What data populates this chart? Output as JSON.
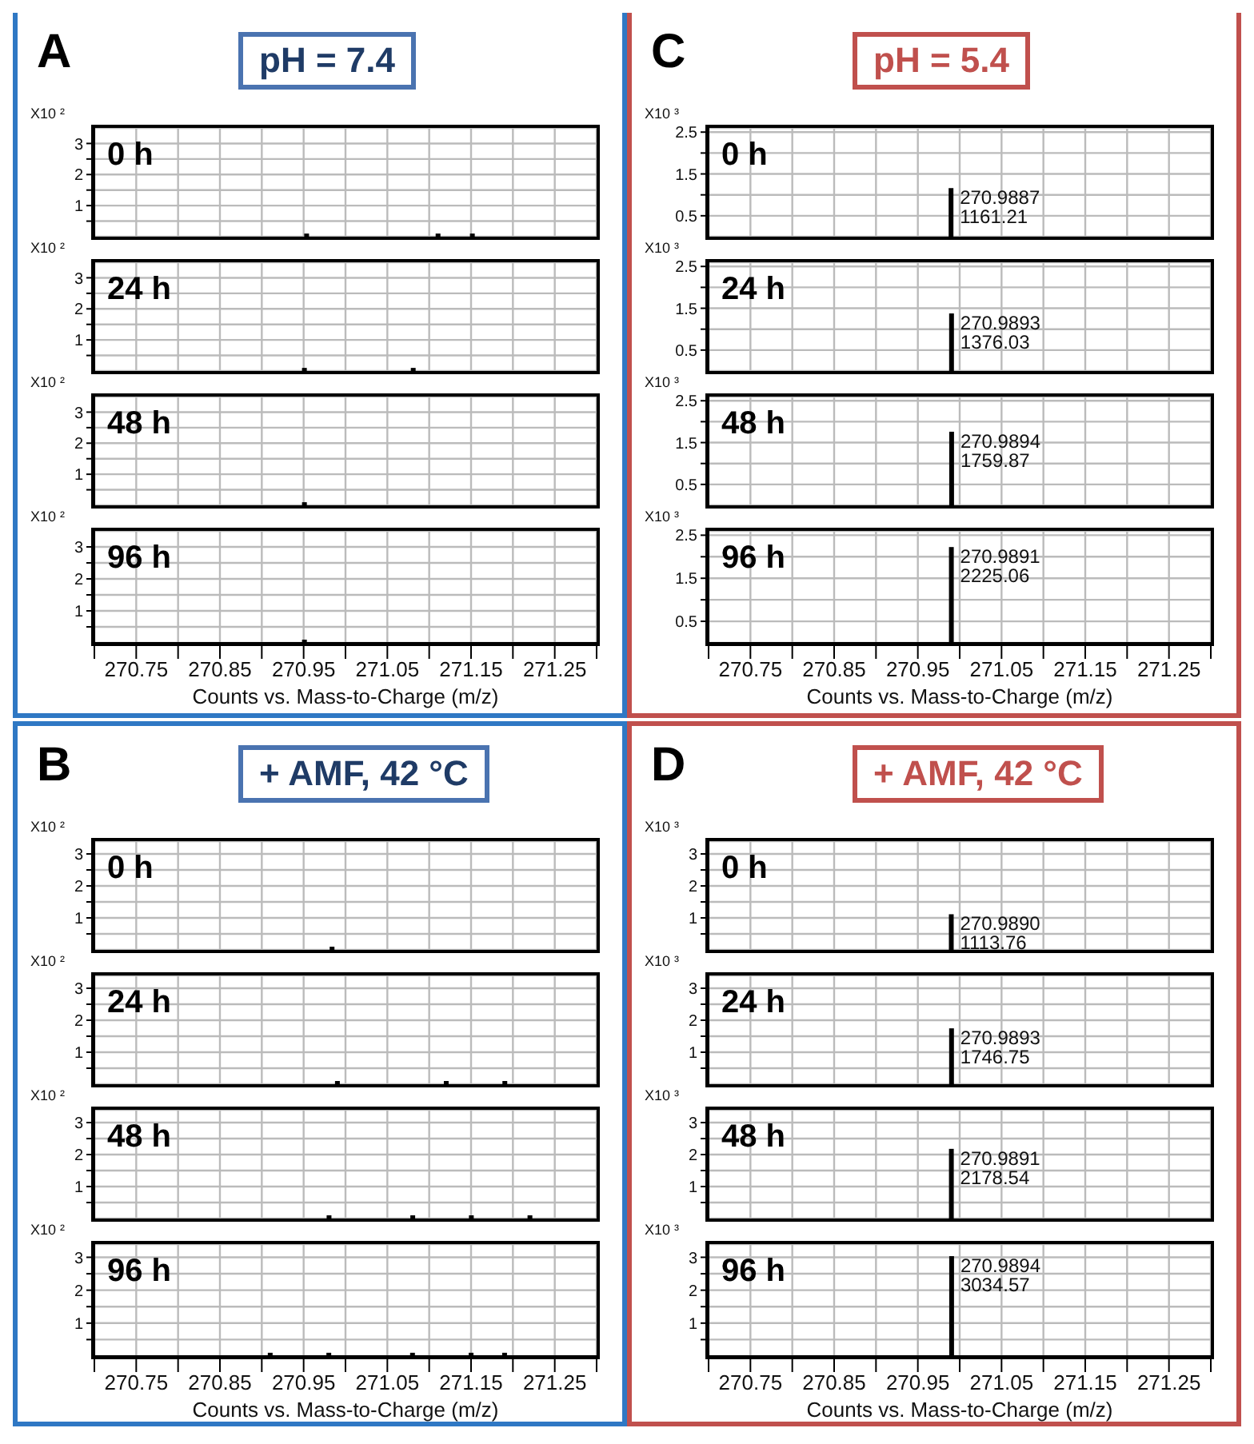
{
  "chart_data": [
    {
      "type": "bar",
      "title": "pH = 7.4",
      "annotations": [
        "A",
        "0 h"
      ],
      "ylabel": "X10 ²",
      "x": [
        270.954,
        271.111,
        271.152
      ],
      "values": [
        0.1,
        0.1,
        0.1
      ],
      "color": "#000000",
      "xlim": [
        270.7,
        271.3
      ],
      "xticks": [
        {
          "value": 270.7,
          "label": null
        },
        270.75,
        {
          "value": 270.8,
          "label": null
        },
        270.85,
        {
          "value": 270.9,
          "label": null
        },
        270.95,
        {
          "value": 271.0,
          "label": null
        },
        271.05,
        {
          "value": 271.1,
          "label": null
        },
        271.15,
        {
          "value": 271.2,
          "label": null
        },
        271.25,
        {
          "value": 271.3,
          "label": null
        }
      ],
      "ylim": [
        0,
        3.5
      ],
      "yticks": [
        {
          "value": 0.5,
          "label": null
        },
        1,
        {
          "value": 1.5,
          "label": null
        },
        2,
        {
          "value": 2.5,
          "label": null
        },
        3
      ],
      "grid": true,
      "tick_labels": "y"
    },
    {
      "type": "bar",
      "annotations": [
        "24 h"
      ],
      "ylabel": "X10 ²",
      "x": [
        270.95,
        271.08
      ],
      "values": [
        0.1,
        0.1
      ],
      "color": "#000000",
      "xlim": [
        270.7,
        271.3
      ],
      "xticks": [
        {
          "value": 270.7,
          "label": null
        },
        270.75,
        {
          "value": 270.8,
          "label": null
        },
        270.85,
        {
          "value": 270.9,
          "label": null
        },
        270.95,
        {
          "value": 271.0,
          "label": null
        },
        271.05,
        {
          "value": 271.1,
          "label": null
        },
        271.15,
        {
          "value": 271.2,
          "label": null
        },
        271.25,
        {
          "value": 271.3,
          "label": null
        }
      ],
      "ylim": [
        0,
        3.5
      ],
      "yticks": [
        {
          "value": 0.5,
          "label": null
        },
        1,
        {
          "value": 1.5,
          "label": null
        },
        2,
        {
          "value": 2.5,
          "label": null
        },
        3
      ],
      "grid": true,
      "tick_labels": "y"
    },
    {
      "type": "bar",
      "annotations": [
        "48 h"
      ],
      "ylabel": "X10 ²",
      "x": [
        270.95
      ],
      "values": [
        0.1
      ],
      "color": "#000000",
      "xlim": [
        270.7,
        271.3
      ],
      "xticks": [
        {
          "value": 270.7,
          "label": null
        },
        270.75,
        {
          "value": 270.8,
          "label": null
        },
        270.85,
        {
          "value": 270.9,
          "label": null
        },
        270.95,
        {
          "value": 271.0,
          "label": null
        },
        271.05,
        {
          "value": 271.1,
          "label": null
        },
        271.15,
        {
          "value": 271.2,
          "label": null
        },
        271.25,
        {
          "value": 271.3,
          "label": null
        }
      ],
      "ylim": [
        0,
        3.5
      ],
      "yticks": [
        {
          "value": 0.5,
          "label": null
        },
        1,
        {
          "value": 1.5,
          "label": null
        },
        2,
        {
          "value": 2.5,
          "label": null
        },
        3
      ],
      "grid": true,
      "tick_labels": "y"
    },
    {
      "type": "bar",
      "annotations": [
        "96 h"
      ],
      "ylabel": "X10 ²",
      "xlabel": "Counts vs. Mass-to-Charge (m/z)",
      "x": [
        270.95
      ],
      "values": [
        0.1
      ],
      "color": "#000000",
      "xlim": [
        270.7,
        271.3
      ],
      "xticks": [
        {
          "value": 270.7,
          "label": null
        },
        270.75,
        {
          "value": 270.8,
          "label": null
        },
        270.85,
        {
          "value": 270.9,
          "label": null
        },
        270.95,
        {
          "value": 271.0,
          "label": null
        },
        271.05,
        {
          "value": 271.1,
          "label": null
        },
        271.15,
        {
          "value": 271.2,
          "label": null
        },
        271.25,
        {
          "value": 271.3,
          "label": null
        }
      ],
      "ylim": [
        0,
        3.5
      ],
      "yticks": [
        {
          "value": 0.5,
          "label": null
        },
        1,
        {
          "value": 1.5,
          "label": null
        },
        2,
        {
          "value": 2.5,
          "label": null
        },
        3
      ],
      "grid": true
    },
    {
      "type": "bar",
      "title": "pH = 5.4",
      "annotations": [
        "C",
        "0 h",
        {
          "text": "270.9887",
          "x": 270.9887,
          "y": 1.16121
        },
        {
          "text": "1161.21",
          "x": 270.9887,
          "y": 1.16121
        }
      ],
      "ylabel": "X10 ³",
      "x": [
        270.9887
      ],
      "values": [
        1.16121
      ],
      "color": "#000000",
      "xlim": [
        270.7,
        271.3
      ],
      "xticks": [
        {
          "value": 270.7,
          "label": null
        },
        270.75,
        {
          "value": 270.8,
          "label": null
        },
        270.85,
        {
          "value": 270.9,
          "label": null
        },
        270.95,
        {
          "value": 271.0,
          "label": null
        },
        271.05,
        {
          "value": 271.1,
          "label": null
        },
        271.15,
        {
          "value": 271.2,
          "label": null
        },
        271.25,
        {
          "value": 271.3,
          "label": null
        }
      ],
      "ylim": [
        0,
        2.6
      ],
      "yticks": [
        0.5,
        {
          "value": 1,
          "label": null
        },
        1.5,
        {
          "value": 2,
          "label": null
        },
        2.5
      ],
      "grid": true,
      "tick_labels": "y"
    },
    {
      "type": "bar",
      "annotations": [
        "24 h",
        {
          "text": "270.9893",
          "x": 270.9893,
          "y": 1.37603
        },
        {
          "text": "1376.03",
          "x": 270.9893,
          "y": 1.37603
        }
      ],
      "ylabel": "X10 ³",
      "x": [
        270.9893
      ],
      "values": [
        1.37603
      ],
      "color": "#000000",
      "xlim": [
        270.7,
        271.3
      ],
      "xticks": [
        {
          "value": 270.7,
          "label": null
        },
        270.75,
        {
          "value": 270.8,
          "label": null
        },
        270.85,
        {
          "value": 270.9,
          "label": null
        },
        270.95,
        {
          "value": 271.0,
          "label": null
        },
        271.05,
        {
          "value": 271.1,
          "label": null
        },
        271.15,
        {
          "value": 271.2,
          "label": null
        },
        271.25,
        {
          "value": 271.3,
          "label": null
        }
      ],
      "ylim": [
        0,
        2.6
      ],
      "yticks": [
        0.5,
        {
          "value": 1,
          "label": null
        },
        1.5,
        {
          "value": 2,
          "label": null
        },
        2.5
      ],
      "grid": true,
      "tick_labels": "y"
    },
    {
      "type": "bar",
      "annotations": [
        "48 h",
        {
          "text": "270.9894",
          "x": 270.9894,
          "y": 1.75987
        },
        {
          "text": "1759.87",
          "x": 270.9894,
          "y": 1.75987
        }
      ],
      "ylabel": "X10 ³",
      "x": [
        270.9894
      ],
      "values": [
        1.75987
      ],
      "color": "#000000",
      "xlim": [
        270.7,
        271.3
      ],
      "xticks": [
        {
          "value": 270.7,
          "label": null
        },
        270.75,
        {
          "value": 270.8,
          "label": null
        },
        270.85,
        {
          "value": 270.9,
          "label": null
        },
        270.95,
        {
          "value": 271.0,
          "label": null
        },
        271.05,
        {
          "value": 271.1,
          "label": null
        },
        271.15,
        {
          "value": 271.2,
          "label": null
        },
        271.25,
        {
          "value": 271.3,
          "label": null
        }
      ],
      "ylim": [
        0,
        2.6
      ],
      "yticks": [
        0.5,
        {
          "value": 1,
          "label": null
        },
        1.5,
        {
          "value": 2,
          "label": null
        },
        2.5
      ],
      "grid": true,
      "tick_labels": "y"
    },
    {
      "type": "bar",
      "annotations": [
        "96 h",
        {
          "text": "270.9891",
          "x": 270.9891,
          "y": 2.22506
        },
        {
          "text": "2225.06",
          "x": 270.9891,
          "y": 2.22506
        }
      ],
      "ylabel": "X10 ³",
      "xlabel": "Counts vs. Mass-to-Charge (m/z)",
      "x": [
        270.9891
      ],
      "values": [
        2.22506
      ],
      "color": "#000000",
      "xlim": [
        270.7,
        271.3
      ],
      "xticks": [
        {
          "value": 270.7,
          "label": null
        },
        270.75,
        {
          "value": 270.8,
          "label": null
        },
        270.85,
        {
          "value": 270.9,
          "label": null
        },
        270.95,
        {
          "value": 271.0,
          "label": null
        },
        271.05,
        {
          "value": 271.1,
          "label": null
        },
        271.15,
        {
          "value": 271.2,
          "label": null
        },
        271.25,
        {
          "value": 271.3,
          "label": null
        }
      ],
      "ylim": [
        0,
        2.6
      ],
      "yticks": [
        0.5,
        {
          "value": 1,
          "label": null
        },
        1.5,
        {
          "value": 2,
          "label": null
        },
        2.5
      ],
      "grid": true
    },
    {
      "type": "bar",
      "title": "+ AMF, 42 °C",
      "annotations": [
        "B",
        "0 h"
      ],
      "ylabel": "X10 ²",
      "x": [
        270.983
      ],
      "values": [
        0.1
      ],
      "color": "#000000",
      "xlim": [
        270.7,
        271.3
      ],
      "xticks": [
        {
          "value": 270.7,
          "label": null
        },
        270.75,
        {
          "value": 270.8,
          "label": null
        },
        270.85,
        {
          "value": 270.9,
          "label": null
        },
        270.95,
        {
          "value": 271.0,
          "label": null
        },
        271.05,
        {
          "value": 271.1,
          "label": null
        },
        271.15,
        {
          "value": 271.2,
          "label": null
        },
        271.25,
        {
          "value": 271.3,
          "label": null
        }
      ],
      "ylim": [
        0,
        3.4
      ],
      "yticks": [
        {
          "value": 0.5,
          "label": null
        },
        1,
        {
          "value": 1.5,
          "label": null
        },
        2,
        {
          "value": 2.5,
          "label": null
        },
        3
      ],
      "grid": true,
      "tick_labels": "y"
    },
    {
      "type": "bar",
      "annotations": [
        "24 h"
      ],
      "ylabel": "X10 ²",
      "x": [
        270.99,
        271.12,
        271.19
      ],
      "values": [
        0.1,
        0.1,
        0.1
      ],
      "color": "#000000",
      "xlim": [
        270.7,
        271.3
      ],
      "xticks": [
        {
          "value": 270.7,
          "label": null
        },
        270.75,
        {
          "value": 270.8,
          "label": null
        },
        270.85,
        {
          "value": 270.9,
          "label": null
        },
        270.95,
        {
          "value": 271.0,
          "label": null
        },
        271.05,
        {
          "value": 271.1,
          "label": null
        },
        271.15,
        {
          "value": 271.2,
          "label": null
        },
        271.25,
        {
          "value": 271.3,
          "label": null
        }
      ],
      "ylim": [
        0,
        3.4
      ],
      "yticks": [
        {
          "value": 0.5,
          "label": null
        },
        1,
        {
          "value": 1.5,
          "label": null
        },
        2,
        {
          "value": 2.5,
          "label": null
        },
        3
      ],
      "grid": true,
      "tick_labels": "y"
    },
    {
      "type": "bar",
      "annotations": [
        "48 h"
      ],
      "ylabel": "X10 ²",
      "x": [
        270.98,
        271.08,
        271.15,
        271.22
      ],
      "values": [
        0.1,
        0.1,
        0.1,
        0.1
      ],
      "color": "#000000",
      "xlim": [
        270.7,
        271.3
      ],
      "xticks": [
        {
          "value": 270.7,
          "label": null
        },
        270.75,
        {
          "value": 270.8,
          "label": null
        },
        270.85,
        {
          "value": 270.9,
          "label": null
        },
        270.95,
        {
          "value": 271.0,
          "label": null
        },
        271.05,
        {
          "value": 271.1,
          "label": null
        },
        271.15,
        {
          "value": 271.2,
          "label": null
        },
        271.25,
        {
          "value": 271.3,
          "label": null
        }
      ],
      "ylim": [
        0,
        3.4
      ],
      "yticks": [
        {
          "value": 0.5,
          "label": null
        },
        1,
        {
          "value": 1.5,
          "label": null
        },
        2,
        {
          "value": 2.5,
          "label": null
        },
        3
      ],
      "grid": true,
      "tick_labels": "y"
    },
    {
      "type": "bar",
      "annotations": [
        "96 h"
      ],
      "ylabel": "X10 ²",
      "xlabel": "Counts vs. Mass-to-Charge (m/z)",
      "x": [
        270.91,
        270.98,
        271.08,
        271.15,
        271.19
      ],
      "values": [
        0.1,
        0.1,
        0.1,
        0.1,
        0.1
      ],
      "color": "#000000",
      "xlim": [
        270.7,
        271.3
      ],
      "xticks": [
        {
          "value": 270.7,
          "label": null
        },
        270.75,
        {
          "value": 270.8,
          "label": null
        },
        270.85,
        {
          "value": 270.9,
          "label": null
        },
        270.95,
        {
          "value": 271.0,
          "label": null
        },
        271.05,
        {
          "value": 271.1,
          "label": null
        },
        271.15,
        {
          "value": 271.2,
          "label": null
        },
        271.25,
        {
          "value": 271.3,
          "label": null
        }
      ],
      "ylim": [
        0,
        3.4
      ],
      "yticks": [
        {
          "value": 0.5,
          "label": null
        },
        1,
        {
          "value": 1.5,
          "label": null
        },
        2,
        {
          "value": 2.5,
          "label": null
        },
        3
      ],
      "grid": true
    },
    {
      "type": "bar",
      "title": "+ AMF, 42 °C",
      "annotations": [
        "D",
        "0 h",
        {
          "text": "270.9890",
          "x": 270.989,
          "y": 1.11376
        },
        {
          "text": "1113.76",
          "x": 270.989,
          "y": 1.11376
        }
      ],
      "ylabel": "X10 ³",
      "x": [
        270.989
      ],
      "values": [
        1.11376
      ],
      "color": "#000000",
      "xlim": [
        270.7,
        271.3
      ],
      "xticks": [
        {
          "value": 270.7,
          "label": null
        },
        270.75,
        {
          "value": 270.8,
          "label": null
        },
        270.85,
        {
          "value": 270.9,
          "label": null
        },
        270.95,
        {
          "value": 271.0,
          "label": null
        },
        271.05,
        {
          "value": 271.1,
          "label": null
        },
        271.15,
        {
          "value": 271.2,
          "label": null
        },
        271.25,
        {
          "value": 271.3,
          "label": null
        }
      ],
      "ylim": [
        0,
        3.4
      ],
      "yticks": [
        {
          "value": 0.5,
          "label": null
        },
        1,
        {
          "value": 1.5,
          "label": null
        },
        2,
        {
          "value": 2.5,
          "label": null
        },
        3
      ],
      "grid": true,
      "tick_labels": "y"
    },
    {
      "type": "bar",
      "annotations": [
        "24 h",
        {
          "text": "270.9893",
          "x": 270.9893,
          "y": 1.74675
        },
        {
          "text": "1746.75",
          "x": 270.9893,
          "y": 1.74675
        }
      ],
      "ylabel": "X10 ³",
      "x": [
        270.9893
      ],
      "values": [
        1.74675
      ],
      "color": "#000000",
      "xlim": [
        270.7,
        271.3
      ],
      "xticks": [
        {
          "value": 270.7,
          "label": null
        },
        270.75,
        {
          "value": 270.8,
          "label": null
        },
        270.85,
        {
          "value": 270.9,
          "label": null
        },
        270.95,
        {
          "value": 271.0,
          "label": null
        },
        271.05,
        {
          "value": 271.1,
          "label": null
        },
        271.15,
        {
          "value": 271.2,
          "label": null
        },
        271.25,
        {
          "value": 271.3,
          "label": null
        }
      ],
      "ylim": [
        0,
        3.4
      ],
      "yticks": [
        {
          "value": 0.5,
          "label": null
        },
        1,
        {
          "value": 1.5,
          "label": null
        },
        2,
        {
          "value": 2.5,
          "label": null
        },
        3
      ],
      "grid": true,
      "tick_labels": "y"
    },
    {
      "type": "bar",
      "annotations": [
        "48 h",
        {
          "text": "270.9891",
          "x": 270.9891,
          "y": 2.17854
        },
        {
          "text": "2178.54",
          "x": 270.9891,
          "y": 2.17854
        }
      ],
      "ylabel": "X10 ³",
      "x": [
        270.9891
      ],
      "values": [
        2.17854
      ],
      "color": "#000000",
      "xlim": [
        270.7,
        271.3
      ],
      "xticks": [
        {
          "value": 270.7,
          "label": null
        },
        270.75,
        {
          "value": 270.8,
          "label": null
        },
        270.85,
        {
          "value": 270.9,
          "label": null
        },
        270.95,
        {
          "value": 271.0,
          "label": null
        },
        271.05,
        {
          "value": 271.1,
          "label": null
        },
        271.15,
        {
          "value": 271.2,
          "label": null
        },
        271.25,
        {
          "value": 271.3,
          "label": null
        }
      ],
      "ylim": [
        0,
        3.4
      ],
      "yticks": [
        {
          "value": 0.5,
          "label": null
        },
        1,
        {
          "value": 1.5,
          "label": null
        },
        2,
        {
          "value": 2.5,
          "label": null
        },
        3
      ],
      "grid": true,
      "tick_labels": "y"
    },
    {
      "type": "bar",
      "annotations": [
        "96 h",
        {
          "text": "270.9894",
          "x": 270.9894,
          "y": 3.03457
        },
        {
          "text": "3034.57",
          "x": 270.9894,
          "y": 3.03457
        }
      ],
      "ylabel": "X10 ³",
      "xlabel": "Counts vs. Mass-to-Charge (m/z)",
      "x": [
        270.9894
      ],
      "values": [
        3.03457
      ],
      "color": "#000000",
      "xlim": [
        270.7,
        271.3
      ],
      "xticks": [
        {
          "value": 270.7,
          "label": null
        },
        270.75,
        {
          "value": 270.8,
          "label": null
        },
        270.85,
        {
          "value": 270.9,
          "label": null
        },
        270.95,
        {
          "value": 271.0,
          "label": null
        },
        271.05,
        {
          "value": 271.1,
          "label": null
        },
        271.15,
        {
          "value": 271.2,
          "label": null
        },
        271.25,
        {
          "value": 271.3,
          "label": null
        }
      ],
      "ylim": [
        0,
        3.4
      ],
      "yticks": [
        {
          "value": 0.5,
          "label": null
        },
        1,
        {
          "value": 1.5,
          "label": null
        },
        2,
        {
          "value": 2.5,
          "label": null
        },
        3
      ],
      "grid": true
    }
  ]
}
